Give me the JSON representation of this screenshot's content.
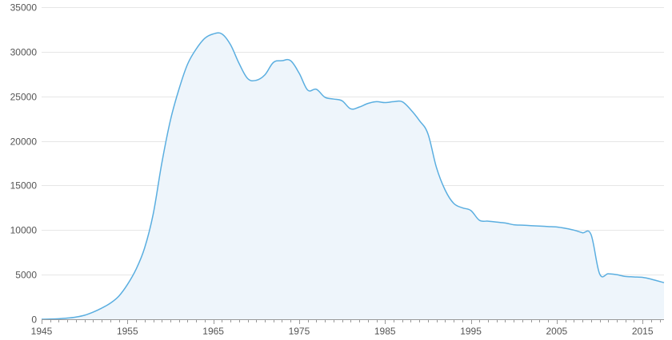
{
  "chart_data": {
    "type": "area",
    "title": "",
    "xlabel": "",
    "ylabel": "",
    "xlim": [
      1945,
      2017.5
    ],
    "ylim": [
      0,
      35000
    ],
    "grid": true,
    "x_ticks": [
      1945,
      1955,
      1965,
      1975,
      1985,
      1995,
      2005,
      2015
    ],
    "y_ticks": [
      0,
      5000,
      10000,
      15000,
      20000,
      25000,
      30000,
      35000
    ],
    "colors": {
      "line": "#5aaee0",
      "fill": "#eef5fb",
      "grid": "#e6e6e6",
      "axis": "#999999"
    },
    "series": [
      {
        "x": [
          1945,
          1946,
          1947,
          1948,
          1949,
          1950,
          1951,
          1952,
          1953,
          1954,
          1955,
          1956,
          1957,
          1958,
          1959,
          1960,
          1961,
          1962,
          1963,
          1964,
          1965,
          1966,
          1967,
          1968,
          1969,
          1970,
          1971,
          1972,
          1973,
          1974,
          1975,
          1976,
          1977,
          1978,
          1979,
          1980,
          1981,
          1982,
          1983,
          1984,
          1985,
          1986,
          1987,
          1988,
          1989,
          1990,
          1991,
          1992,
          1993,
          1994,
          1995,
          1996,
          1997,
          1998,
          1999,
          2000,
          2001,
          2002,
          2003,
          2004,
          2005,
          2006,
          2007,
          2008,
          2009,
          2010,
          2011,
          2012,
          2013,
          2014,
          2015,
          2016,
          2017.5
        ],
        "y": [
          0,
          20,
          60,
          130,
          250,
          450,
          800,
          1250,
          1800,
          2600,
          3900,
          5600,
          8000,
          11800,
          17500,
          22300,
          25800,
          28600,
          30300,
          31500,
          32000,
          32000,
          30800,
          28700,
          27000,
          26800,
          27400,
          28800,
          29000,
          29000,
          27600,
          25700,
          25800,
          24900,
          24700,
          24500,
          23600,
          23800,
          24200,
          24400,
          24300,
          24400,
          24400,
          23500,
          22300,
          20800,
          17000,
          14500,
          13000,
          12500,
          12200,
          11100,
          11000,
          10900,
          10800,
          10600,
          10550,
          10500,
          10450,
          10400,
          10350,
          10200,
          10000,
          9700,
          9500,
          5100,
          5100,
          5000,
          4800,
          4750,
          4700,
          4500,
          4100
        ]
      }
    ]
  }
}
